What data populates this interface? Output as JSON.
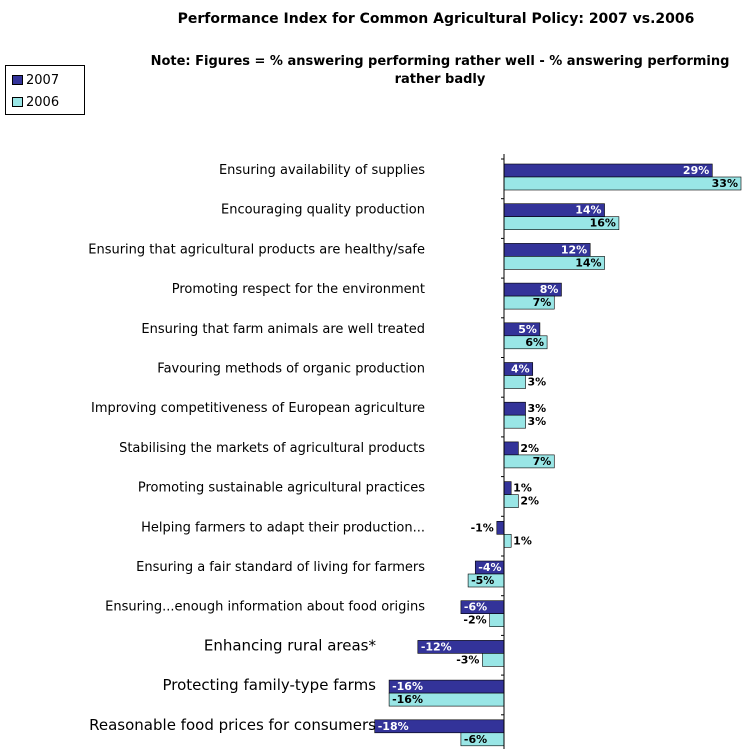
{
  "chart_data": {
    "type": "bar",
    "orientation": "horizontal",
    "title": "Performance Index for Common Agricultural Policy: 2007 vs.2006",
    "subtitle": "Note: Figures = % answering performing rather well - % answering performing rather badly",
    "legend_position": "top-left",
    "grid": false,
    "xlim": [
      -18,
      33
    ],
    "categories": [
      "Ensuring availability of supplies",
      "Encouraging quality production",
      "Ensuring that agricultural products are healthy/safe",
      "Promoting respect for the environment",
      "Ensuring that farm animals are well treated",
      "Favouring methods of organic production",
      "Improving competitiveness of European agriculture",
      "Stabilising the markets of agricultural products",
      "Promoting sustainable agricultural practices",
      "Helping farmers to adapt their production...",
      "Ensuring a fair standard of living for farmers",
      "Ensuring...enough information about  food origins",
      "Enhancing rural areas*",
      "Protecting family-type farms",
      "Reasonable food prices for consumers"
    ],
    "series": [
      {
        "name": "2007",
        "color": "#333399",
        "values": [
          29,
          14,
          12,
          8,
          5,
          4,
          3,
          2,
          1,
          -1,
          -4,
          -6,
          -12,
          -16,
          -18
        ],
        "labels": [
          "29%",
          "14%",
          "12%",
          "8%",
          "5%",
          "4%",
          "3%",
          "2%",
          "1%",
          "-1%",
          "-4%",
          "-6%",
          "-12%",
          "-16%",
          "-18%"
        ]
      },
      {
        "name": "2006",
        "color": "#99e6e6",
        "values": [
          33,
          16,
          14,
          7,
          6,
          3,
          3,
          7,
          2,
          1,
          -5,
          -2,
          -3,
          -16,
          -6
        ],
        "labels": [
          "33%",
          "16%",
          "14%",
          "7%",
          "6%",
          "3%",
          "3%",
          "7%",
          "2%",
          "1%",
          "-5%",
          "-2%",
          "-3%",
          "-16%",
          "-6%"
        ]
      }
    ]
  }
}
